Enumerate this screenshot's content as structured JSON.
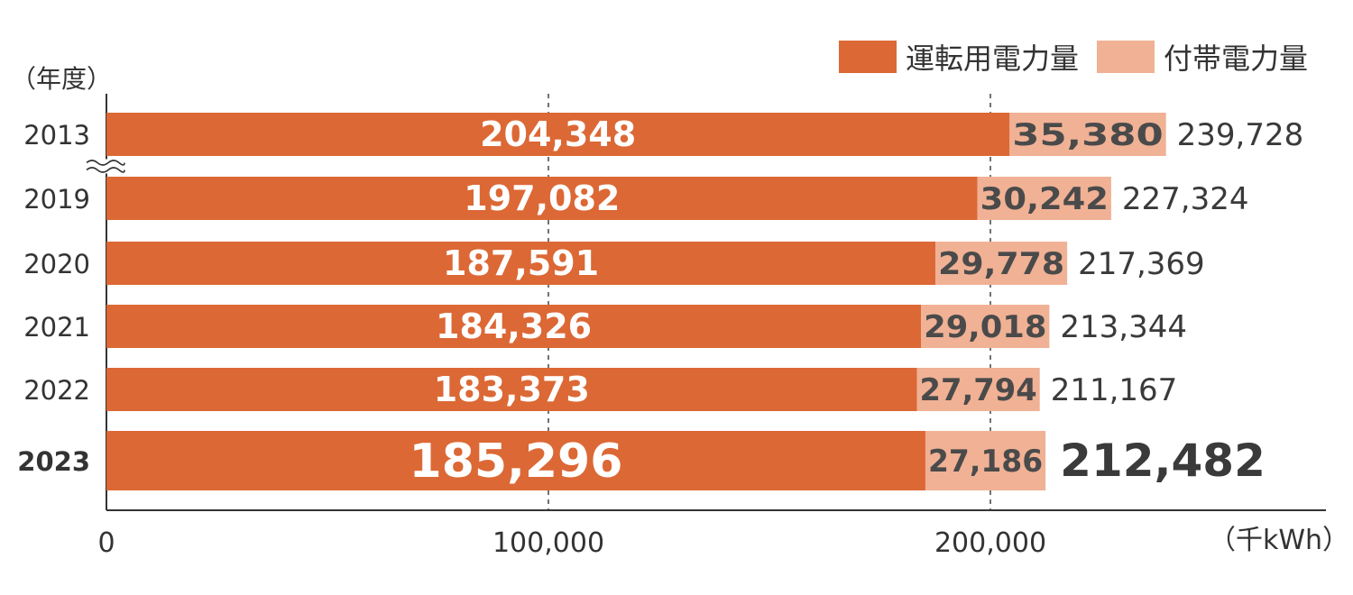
{
  "chart_data": {
    "type": "bar",
    "orientation": "horizontal",
    "stacked": true,
    "categories": [
      "2013",
      "2019",
      "2020",
      "2021",
      "2022",
      "2023"
    ],
    "highlighted_category": "2023",
    "series": [
      {
        "name": "運転用電力量",
        "color": "#dc6835",
        "values": [
          204348,
          197082,
          187591,
          184326,
          183373,
          185296
        ],
        "labels": [
          "204,348",
          "197,082",
          "187,591",
          "184,326",
          "183,373",
          "185,296"
        ]
      },
      {
        "name": "付帯電力量",
        "color": "#f0b195",
        "values": [
          35380,
          30242,
          29778,
          29018,
          27794,
          27186
        ],
        "labels": [
          "35,380",
          "30,242",
          "29,778",
          "29,018",
          "27,794",
          "27,186"
        ]
      }
    ],
    "totals": [
      239728,
      227324,
      217369,
      213344,
      211167,
      212482
    ],
    "total_labels": [
      "239,728",
      "227,324",
      "217,369",
      "213,344",
      "211,167",
      "212,482"
    ],
    "xlim": [
      0,
      280000
    ],
    "xticks": [
      0,
      100000,
      200000
    ],
    "xtick_labels": [
      "0",
      "100,000",
      "200,000"
    ],
    "xunit": "（千kWh）",
    "yunit": "（年度）",
    "axis_break_after": "2013",
    "grid": "x-dashed",
    "legend_position": "top-right"
  }
}
